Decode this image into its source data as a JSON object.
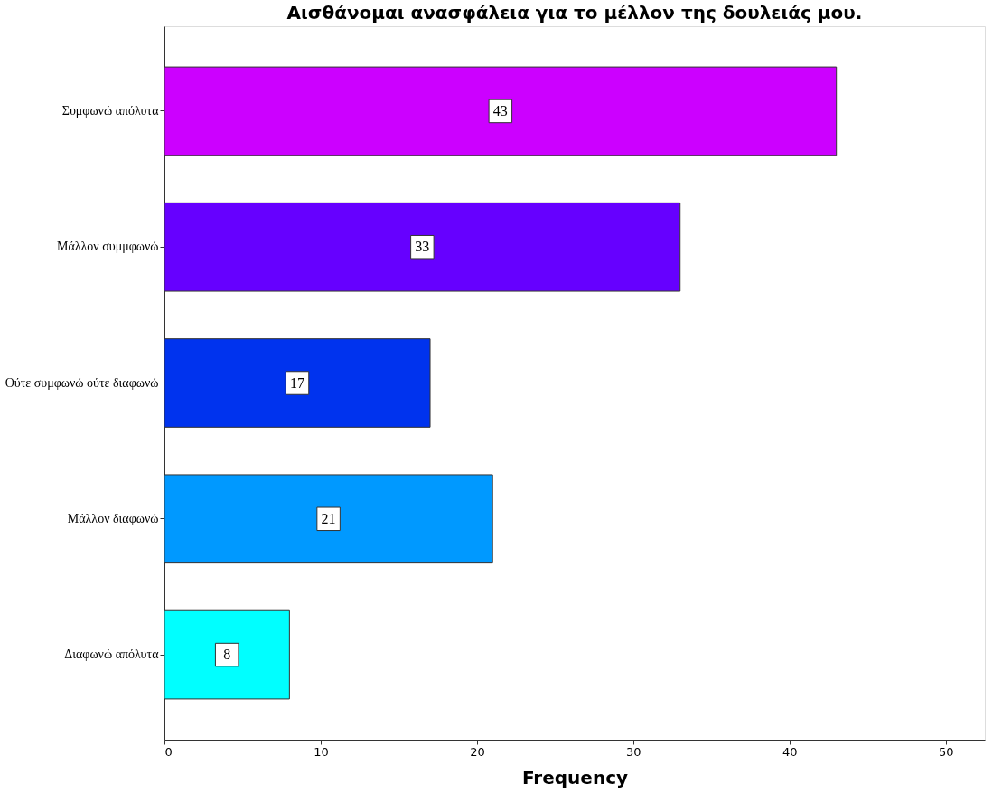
{
  "chart_data": {
    "type": "bar",
    "orientation": "horizontal",
    "title": "Αισθάνομαι ανασφάλεια για το μέλλον της δουλειάς μου.",
    "xlabel": "Frequency",
    "categories": [
      "Συμφωνώ απόλυτα",
      "Μάλλον συμμφωνώ",
      "Ούτε συμφωνώ ούτε διαφωνώ",
      "Μάλλον διαφωνώ",
      "Διαφωνώ απόλυτα"
    ],
    "values": [
      43,
      33,
      17,
      21,
      8
    ],
    "colors": [
      "#cc00ff",
      "#6600ff",
      "#0033ee",
      "#0099ff",
      "#00ffff"
    ],
    "xlim": [
      0,
      52.5
    ],
    "xticks": [
      0,
      10,
      20,
      30,
      40,
      50
    ],
    "grid": false,
    "data_labels": true,
    "legend": false
  }
}
